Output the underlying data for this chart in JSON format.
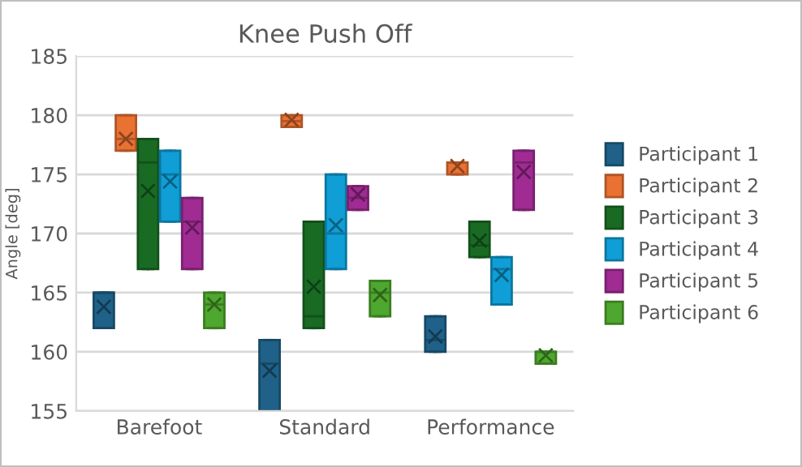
{
  "chart_data": {
    "type": "box",
    "title": "Knee Push Off",
    "ylabel": "Angle [deg]",
    "categories": [
      "Barefoot",
      "Standard",
      "Performance"
    ],
    "ylim": [
      155,
      185
    ],
    "yticks": [
      155,
      160,
      165,
      170,
      175,
      180,
      185
    ],
    "grid": "y",
    "legend": "right",
    "series": [
      {
        "name": "Participant 1",
        "color": "#1f6188",
        "boxes": [
          {
            "low": 162,
            "q1": 162,
            "median": 165,
            "q3": 165,
            "high": 165,
            "mean": 163.8
          },
          {
            "low": 155,
            "q1": 155,
            "median": 159,
            "q3": 161,
            "high": 161,
            "mean": 158.4
          },
          {
            "low": 160,
            "q1": 160,
            "median": 161,
            "q3": 163,
            "high": 163,
            "mean": 161.3
          }
        ]
      },
      {
        "name": "Participant 2",
        "color": "#e97132",
        "boxes": [
          {
            "low": 177,
            "q1": 177,
            "median": 178,
            "q3": 180,
            "high": 180,
            "mean": 178
          },
          {
            "low": 179,
            "q1": 179,
            "median": 179.5,
            "q3": 180,
            "high": 180,
            "mean": 179.6
          },
          {
            "low": 175,
            "q1": 175,
            "median": 176,
            "q3": 176,
            "high": 176,
            "mean": 175.7
          }
        ]
      },
      {
        "name": "Participant 3",
        "color": "#196b24",
        "boxes": [
          {
            "low": 167,
            "q1": 167,
            "median": 176,
            "q3": 178,
            "high": 178,
            "mean": 173.6
          },
          {
            "low": 162,
            "q1": 162,
            "median": 163,
            "q3": 171,
            "high": 171,
            "mean": 165.5
          },
          {
            "low": 168,
            "q1": 168,
            "median": 169,
            "q3": 171,
            "high": 171,
            "mean": 169.4
          }
        ]
      },
      {
        "name": "Participant 4",
        "color": "#0f9ed5",
        "boxes": [
          {
            "low": 171,
            "q1": 171,
            "median": 175,
            "q3": 177,
            "high": 177,
            "mean": 174.4
          },
          {
            "low": 167,
            "q1": 167,
            "median": 170,
            "q3": 175,
            "high": 175,
            "mean": 170.7
          },
          {
            "low": 164,
            "q1": 164,
            "median": 167,
            "q3": 168,
            "high": 168,
            "mean": 166.5
          }
        ]
      },
      {
        "name": "Participant 5",
        "color": "#a02b93",
        "boxes": [
          {
            "low": 167,
            "q1": 167,
            "median": 171,
            "q3": 173,
            "high": 173,
            "mean": 170.5
          },
          {
            "low": 172,
            "q1": 172,
            "median": 173,
            "q3": 174,
            "high": 174,
            "mean": 173.3
          },
          {
            "low": 172,
            "q1": 172,
            "median": 176,
            "q3": 177,
            "high": 177,
            "mean": 175.2
          }
        ]
      },
      {
        "name": "Participant 6",
        "color": "#4ea72e",
        "boxes": [
          {
            "low": 162,
            "q1": 162,
            "median": 164,
            "q3": 165,
            "high": 165,
            "mean": 164
          },
          {
            "low": 163,
            "q1": 163,
            "median": 165,
            "q3": 166,
            "high": 166,
            "mean": 164.8
          },
          {
            "low": 159,
            "q1": 159,
            "median": 160,
            "q3": 160,
            "high": 160,
            "mean": 159.7
          }
        ]
      }
    ]
  }
}
